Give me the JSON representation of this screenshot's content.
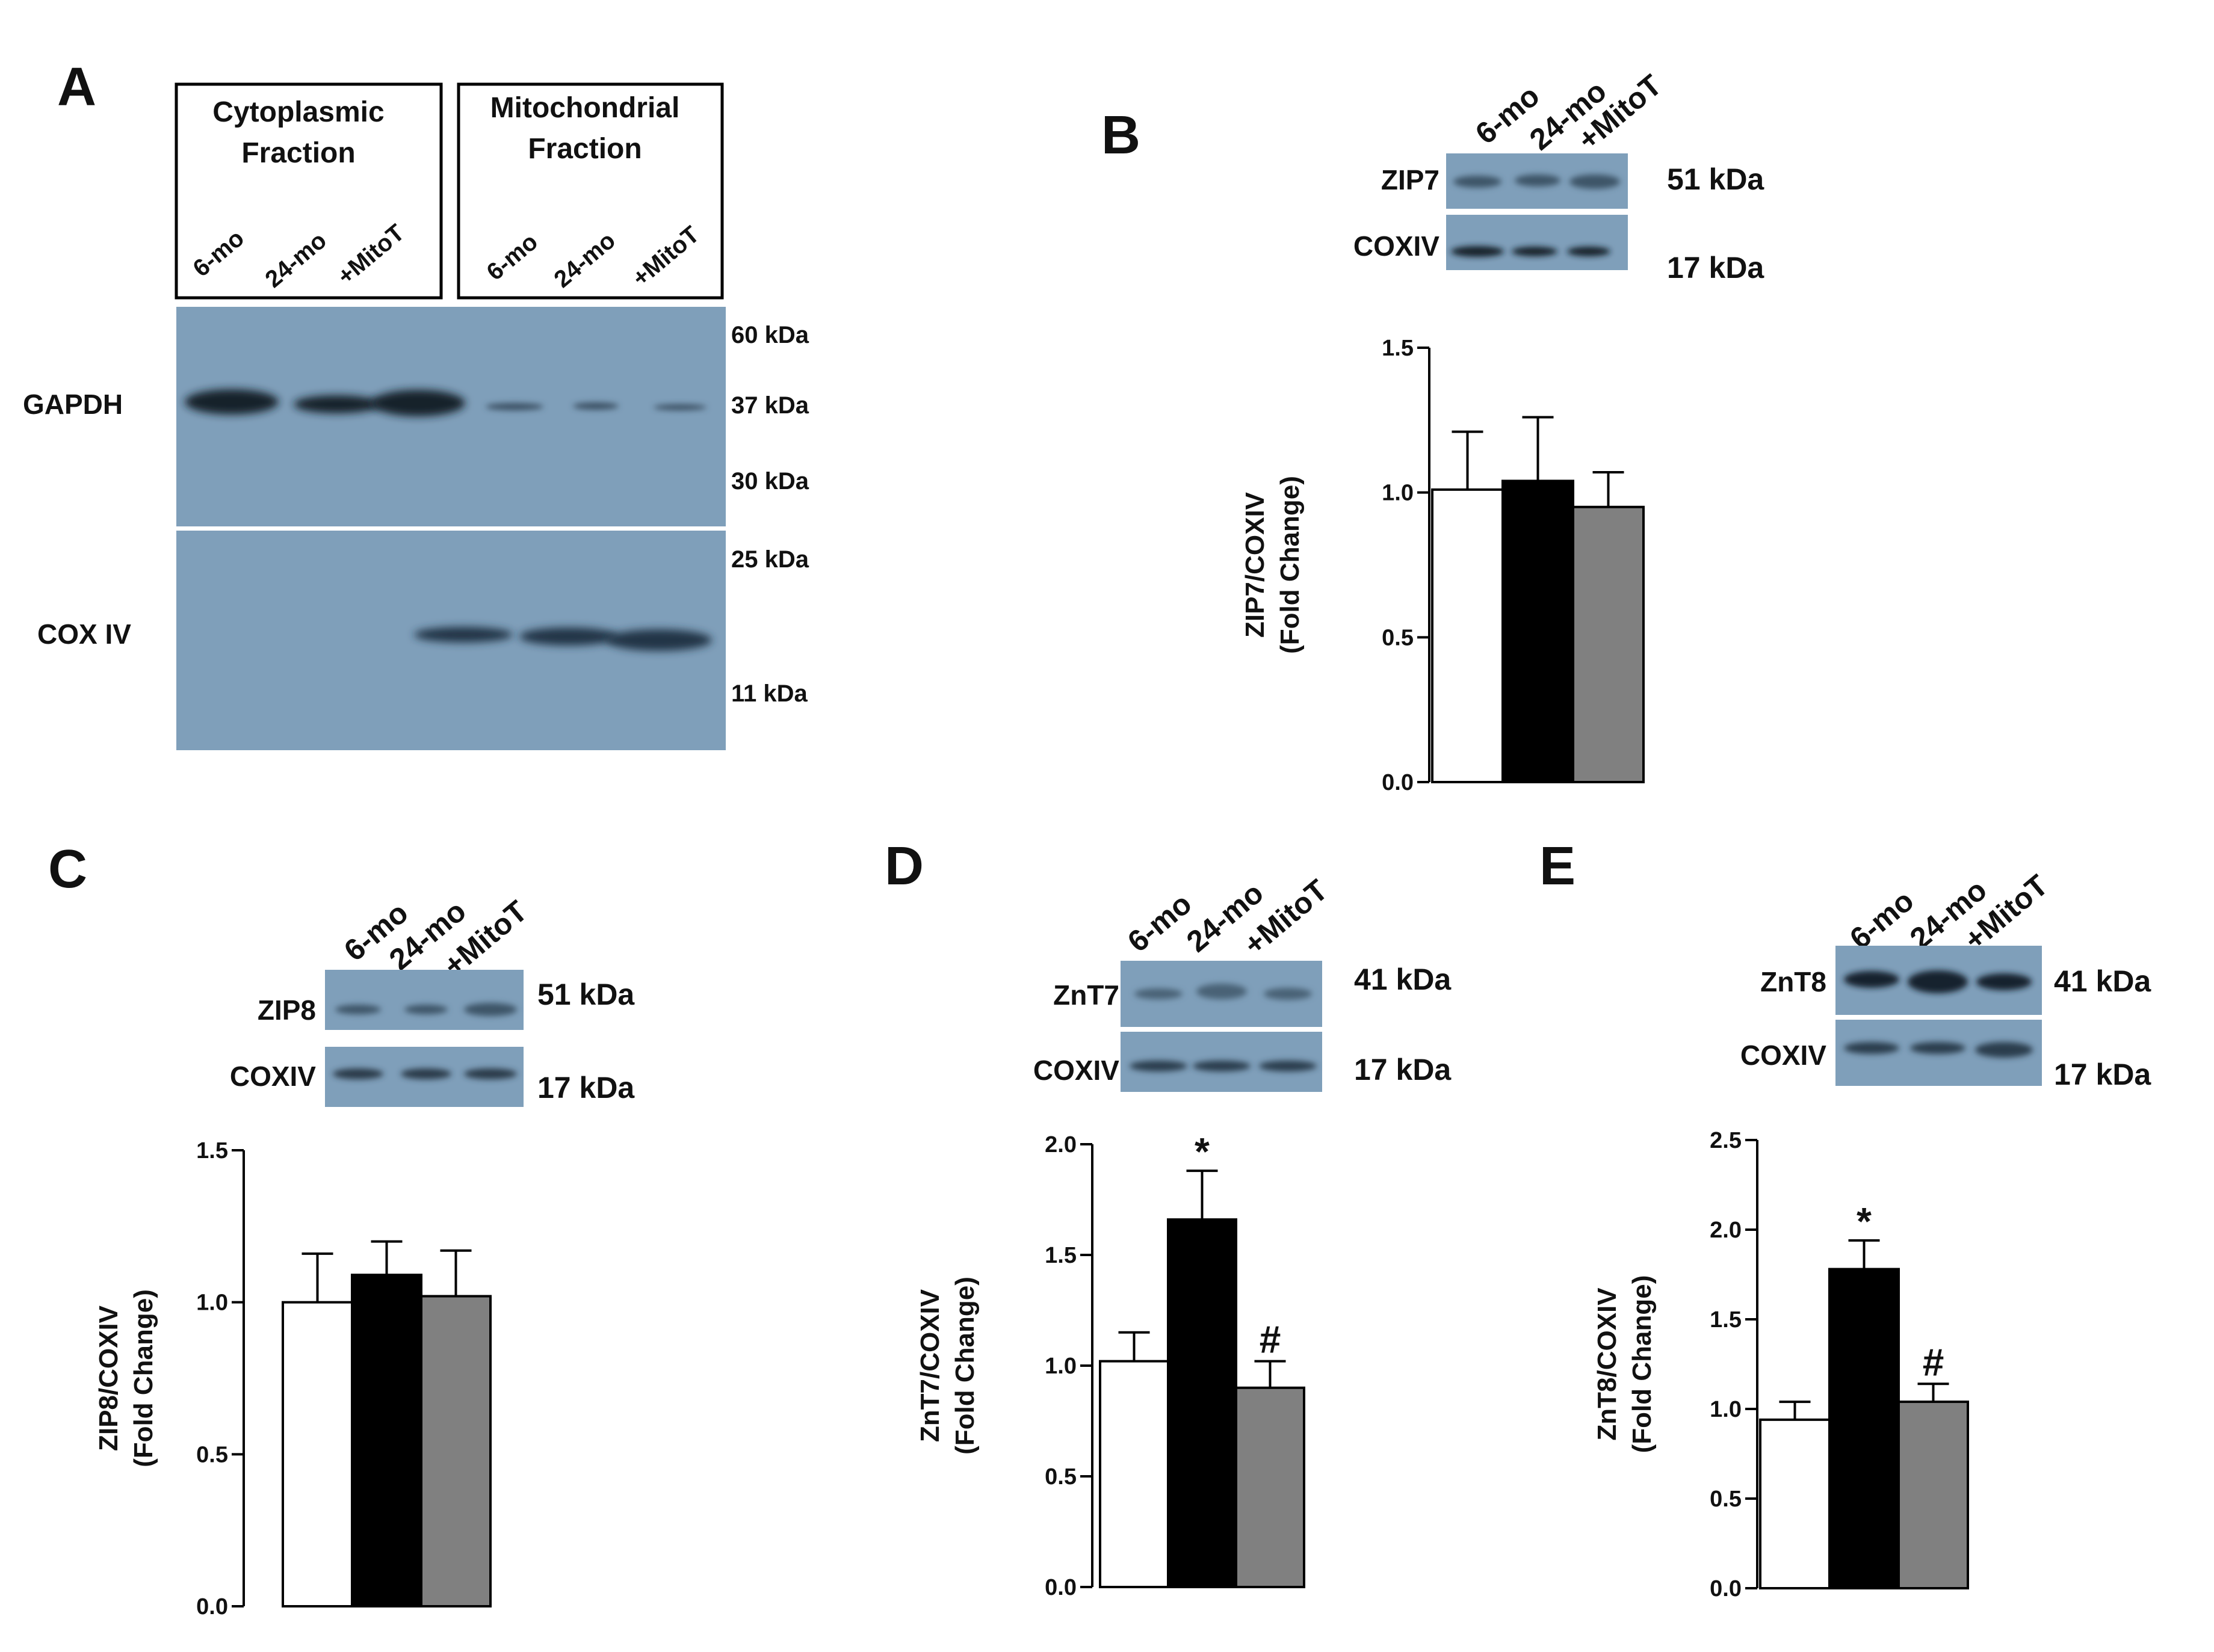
{
  "groups": [
    "6-mo",
    "24-mo",
    "+MitoT"
  ],
  "bar_colors": [
    "#ffffff",
    "#000000",
    "#808080"
  ],
  "blot_color": "#7f9fba",
  "panel_a": {
    "letter": "A",
    "cyto_label": [
      "Cytoplasmic",
      "Fraction"
    ],
    "mito_label": [
      "Mitochondrial",
      "Fraction"
    ],
    "lanes": [
      "6-mo",
      "24-mo",
      "+MitoT",
      "6-mo",
      "24-mo",
      "+MitoT"
    ],
    "gapdh_label": "GAPDH",
    "cox_label": "COX IV",
    "markers": [
      "60 kDa",
      "37 kDa",
      "30 kDa",
      "25 kDa",
      "11 kDa"
    ]
  },
  "blots": {
    "B": {
      "letter": "B",
      "target": "ZIP7",
      "target_kda": "51 kDa",
      "control": "COXIV",
      "control_kda": "17 kDa"
    },
    "C": {
      "letter": "C",
      "target": "ZIP8",
      "target_kda": "51 kDa",
      "control": "COXIV",
      "control_kda": "17 kDa"
    },
    "D": {
      "letter": "D",
      "target": "ZnT7",
      "target_kda": "41 kDa",
      "control": "COXIV",
      "control_kda": "17 kDa"
    },
    "E": {
      "letter": "E",
      "target": "ZnT8",
      "target_kda": "41 kDa",
      "control": "COXIV",
      "control_kda": "17 kDa"
    }
  },
  "chart_data": [
    {
      "panel": "B",
      "type": "bar",
      "categories": [
        "6-mo",
        "24-mo",
        "+MitoT"
      ],
      "values": [
        1.01,
        1.04,
        0.95
      ],
      "errors": [
        0.2,
        0.22,
        0.12
      ],
      "ylim": [
        0,
        1.5
      ],
      "yticks": [
        "0.0",
        "0.5",
        "1.0",
        "1.5"
      ],
      "ylabel": [
        "ZIP7/COXIV",
        "(Fold Change)"
      ],
      "annotations": [
        "",
        "",
        ""
      ]
    },
    {
      "panel": "C",
      "type": "bar",
      "categories": [
        "6-mo",
        "24-mo",
        "+MitoT"
      ],
      "values": [
        1.0,
        1.09,
        1.02
      ],
      "errors": [
        0.16,
        0.11,
        0.15
      ],
      "ylim": [
        0,
        1.5
      ],
      "yticks": [
        "0.0",
        "0.5",
        "1.0",
        "1.5"
      ],
      "ylabel": [
        "ZIP8/COXIV",
        "(Fold Change)"
      ],
      "annotations": [
        "",
        "",
        ""
      ]
    },
    {
      "panel": "D",
      "type": "bar",
      "categories": [
        "6-mo",
        "24-mo",
        "+MitoT"
      ],
      "values": [
        1.02,
        1.66,
        0.9
      ],
      "errors": [
        0.13,
        0.22,
        0.12
      ],
      "ylim": [
        0,
        2.0
      ],
      "yticks": [
        "0.0",
        "0.5",
        "1.0",
        "1.5",
        "2.0"
      ],
      "ylabel": [
        "ZnT7/COXIV",
        "(Fold Change)"
      ],
      "annotations": [
        "",
        "*",
        "#"
      ]
    },
    {
      "panel": "E",
      "type": "bar",
      "categories": [
        "6-mo",
        "24-mo",
        "+MitoT"
      ],
      "values": [
        0.94,
        1.78,
        1.04
      ],
      "errors": [
        0.1,
        0.16,
        0.1
      ],
      "ylim": [
        0,
        2.5
      ],
      "yticks": [
        "0.0",
        "0.5",
        "1.0",
        "1.5",
        "2.0",
        "2.5"
      ],
      "ylabel": [
        "ZnT8/COXIV",
        "(Fold Change)"
      ],
      "annotations": [
        "",
        "*",
        "#"
      ]
    }
  ]
}
